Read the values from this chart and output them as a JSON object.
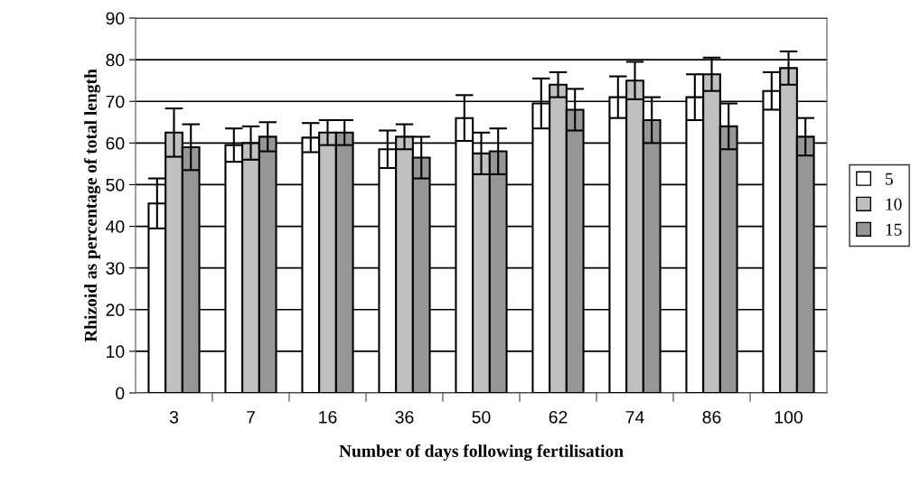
{
  "chart_data": {
    "type": "bar",
    "xlabel": "Number of days following fertilisation",
    "ylabel": "Rhizoid as percentage of total length",
    "categories": [
      "3",
      "7",
      "16",
      "36",
      "50",
      "62",
      "74",
      "86",
      "100"
    ],
    "series": [
      {
        "name": "5",
        "color": "#ffffff",
        "values": [
          45.5,
          59.5,
          61.3,
          58.5,
          66,
          69.5,
          71,
          71,
          72.5
        ],
        "errors": [
          6,
          4,
          3.5,
          4.5,
          5.5,
          6,
          5,
          5.5,
          4.5
        ]
      },
      {
        "name": "10",
        "color": "#c0c0c0",
        "values": [
          62.5,
          60,
          62.5,
          61.5,
          57.5,
          74,
          75,
          76.5,
          78
        ],
        "errors": [
          5.8,
          4,
          3,
          3,
          5,
          3,
          4.5,
          4,
          4
        ]
      },
      {
        "name": "15",
        "color": "#969696",
        "values": [
          59,
          61.5,
          62.5,
          56.5,
          58,
          68,
          65.5,
          64,
          61.5
        ],
        "errors": [
          5.5,
          3.5,
          3,
          5,
          5.5,
          5,
          5.5,
          5.5,
          4.5
        ]
      }
    ],
    "ylim": [
      0,
      90
    ],
    "yticks": [
      0,
      10,
      20,
      30,
      40,
      50,
      60,
      70,
      80,
      90
    ],
    "grid": "y",
    "legend": "right"
  }
}
